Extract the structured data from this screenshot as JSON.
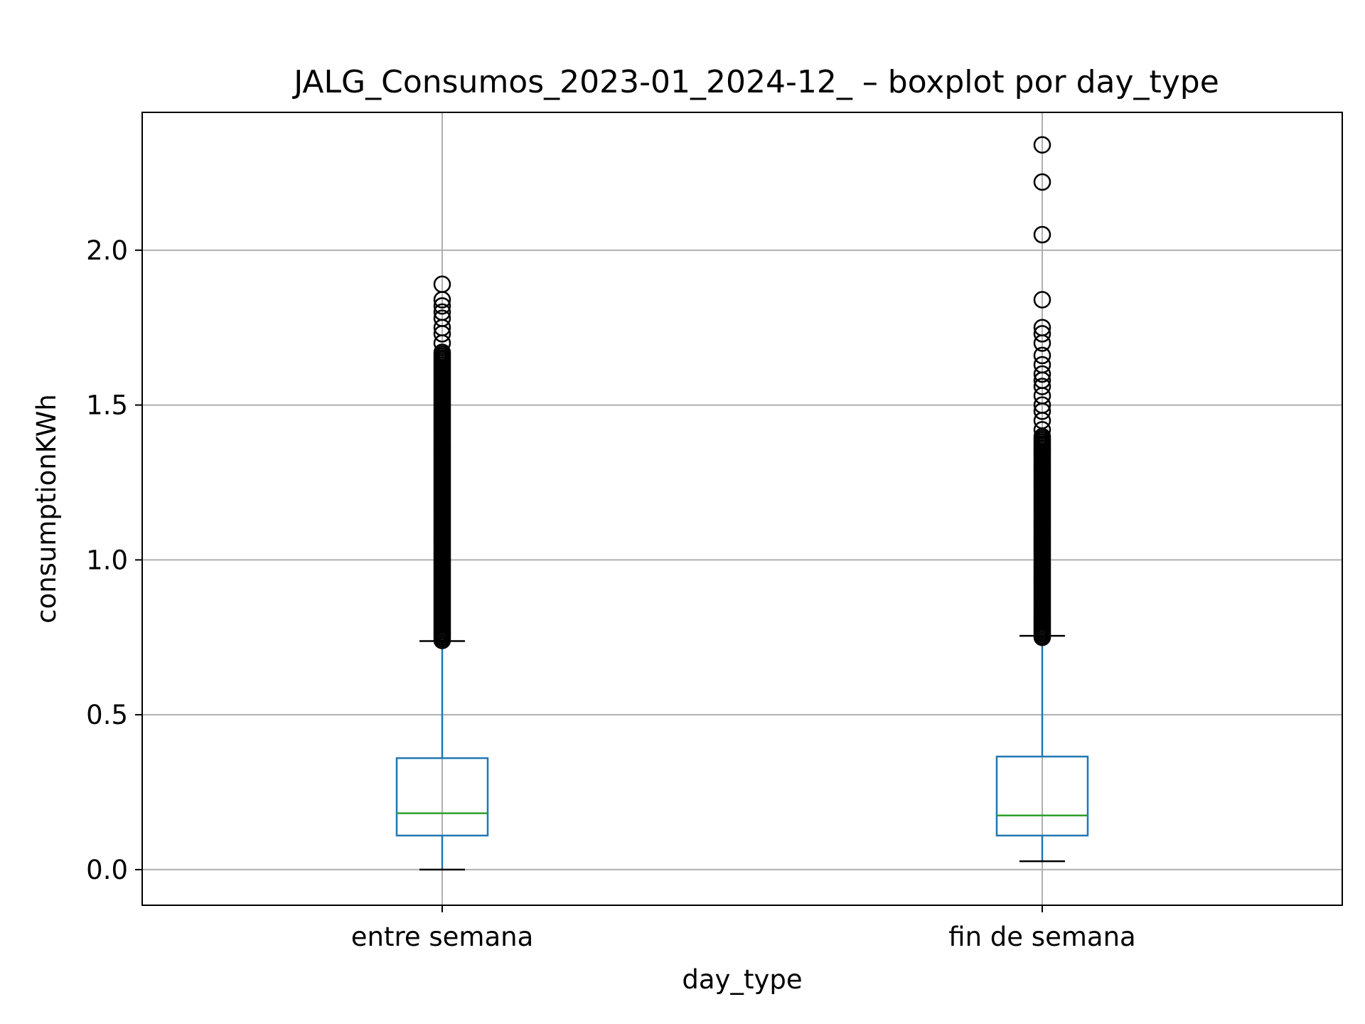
{
  "chart_data": {
    "type": "boxplot",
    "title": "JALG_Consumos_2023-01_2024-12_ – boxplot por day_type",
    "xlabel": "day_type",
    "ylabel": "consumptionKWh",
    "ylim": [
      -0.115,
      2.445
    ],
    "yticks": [
      0.0,
      0.5,
      1.0,
      1.5,
      2.0
    ],
    "ytick_labels": [
      "0.0",
      "0.5",
      "1.0",
      "1.5",
      "2.0"
    ],
    "grid": true,
    "colors": {
      "box": "#1f77b4",
      "median": "#2ca02c",
      "whisker_cap": "#000000",
      "flier": "#000000",
      "grid": "#b0b0b0"
    },
    "categories": [
      "entre semana",
      "fin de semana"
    ],
    "series": [
      {
        "category": "entre semana",
        "whisker_low": 0.0,
        "q1": 0.11,
        "median": 0.182,
        "q3": 0.36,
        "whisker_high": 0.738,
        "outliers_range": [
          0.74,
          1.67
        ],
        "outliers_extra": [
          1.7,
          1.73,
          1.75,
          1.78,
          1.8,
          1.82,
          1.84,
          1.89
        ]
      },
      {
        "category": "fin de semana",
        "whisker_low": 0.027,
        "q1": 0.11,
        "median": 0.175,
        "q3": 0.365,
        "whisker_high": 0.755,
        "outliers_range": [
          0.75,
          1.4
        ],
        "outliers_extra": [
          1.42,
          1.45,
          1.48,
          1.5,
          1.53,
          1.56,
          1.58,
          1.6,
          1.63,
          1.66,
          1.7,
          1.73,
          1.75,
          1.84,
          2.05,
          2.22,
          2.34
        ]
      }
    ]
  }
}
